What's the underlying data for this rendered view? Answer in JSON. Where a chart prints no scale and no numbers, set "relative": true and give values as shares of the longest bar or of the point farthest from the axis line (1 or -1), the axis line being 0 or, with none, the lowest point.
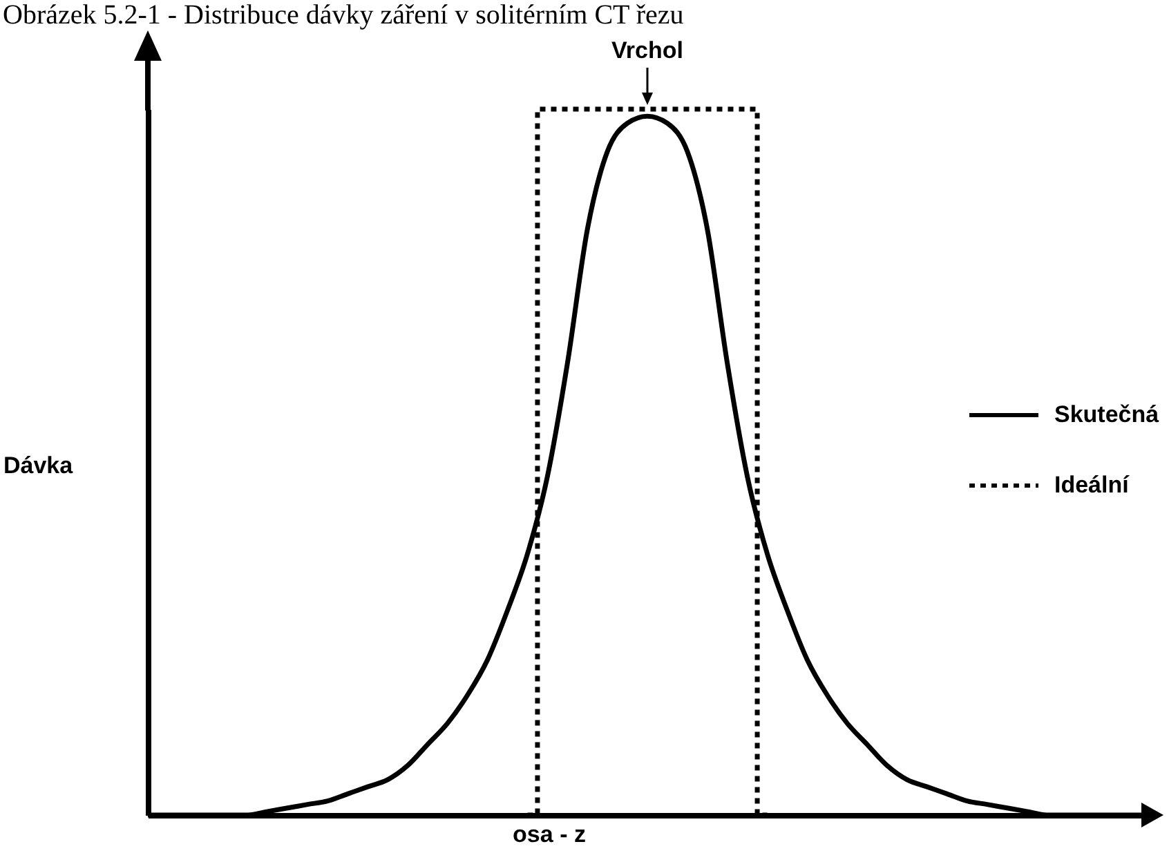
{
  "chart_data": {
    "type": "line",
    "title": "Obrázek 5.2-1 - Distribuce dávky záření v solitérním CT řezu",
    "xlabel": "osa - z",
    "ylabel": "Dávka",
    "relative": true,
    "legend": "right",
    "grid": false,
    "marker": "none",
    "annotations": [
      "Vrchol"
    ],
    "categories": [
      null,
      null,
      null,
      null,
      null,
      null,
      null,
      null,
      null,
      null,
      null,
      null,
      null,
      null,
      null,
      null,
      null,
      null,
      null,
      null,
      null,
      null,
      null,
      null,
      null,
      null,
      null,
      null,
      null,
      null,
      null,
      null,
      null,
      null,
      null,
      null,
      null,
      null,
      null,
      null,
      null,
      null,
      null,
      null,
      null,
      null,
      null,
      null,
      null,
      null,
      null
    ],
    "series": [
      {
        "name": "Skutečná",
        "color": "#000000",
        "line_style": "solid",
        "values": [
          0,
          0,
          0,
          0,
          0,
          0,
          0.005,
          0.01,
          0.015,
          0.02,
          0.03,
          0.04,
          0.05,
          0.07,
          0.1,
          0.13,
          0.17,
          0.22,
          0.29,
          0.37,
          0.48,
          0.64,
          0.83,
          0.94,
          0.98,
          0.99,
          0.98,
          0.94,
          0.83,
          0.64,
          0.48,
          0.37,
          0.29,
          0.22,
          0.17,
          0.13,
          0.1,
          0.07,
          0.05,
          0.04,
          0.03,
          0.02,
          0.015,
          0.01,
          0.005,
          0,
          0,
          0,
          0,
          0,
          0
        ]
      },
      {
        "name": "Ideální",
        "type": "step",
        "color": "#000000",
        "line_style": "dotted",
        "values": [
          null,
          null,
          null,
          null,
          null,
          null,
          null,
          null,
          null,
          null,
          null,
          null,
          null,
          null,
          null,
          null,
          null,
          null,
          null,
          0,
          1,
          1,
          1,
          1,
          1,
          1,
          1,
          1,
          1,
          1,
          1,
          0,
          null,
          null,
          null,
          null,
          null,
          null,
          null,
          null,
          null,
          null,
          null,
          null,
          null,
          null,
          null,
          null,
          null,
          null,
          null
        ]
      }
    ]
  }
}
